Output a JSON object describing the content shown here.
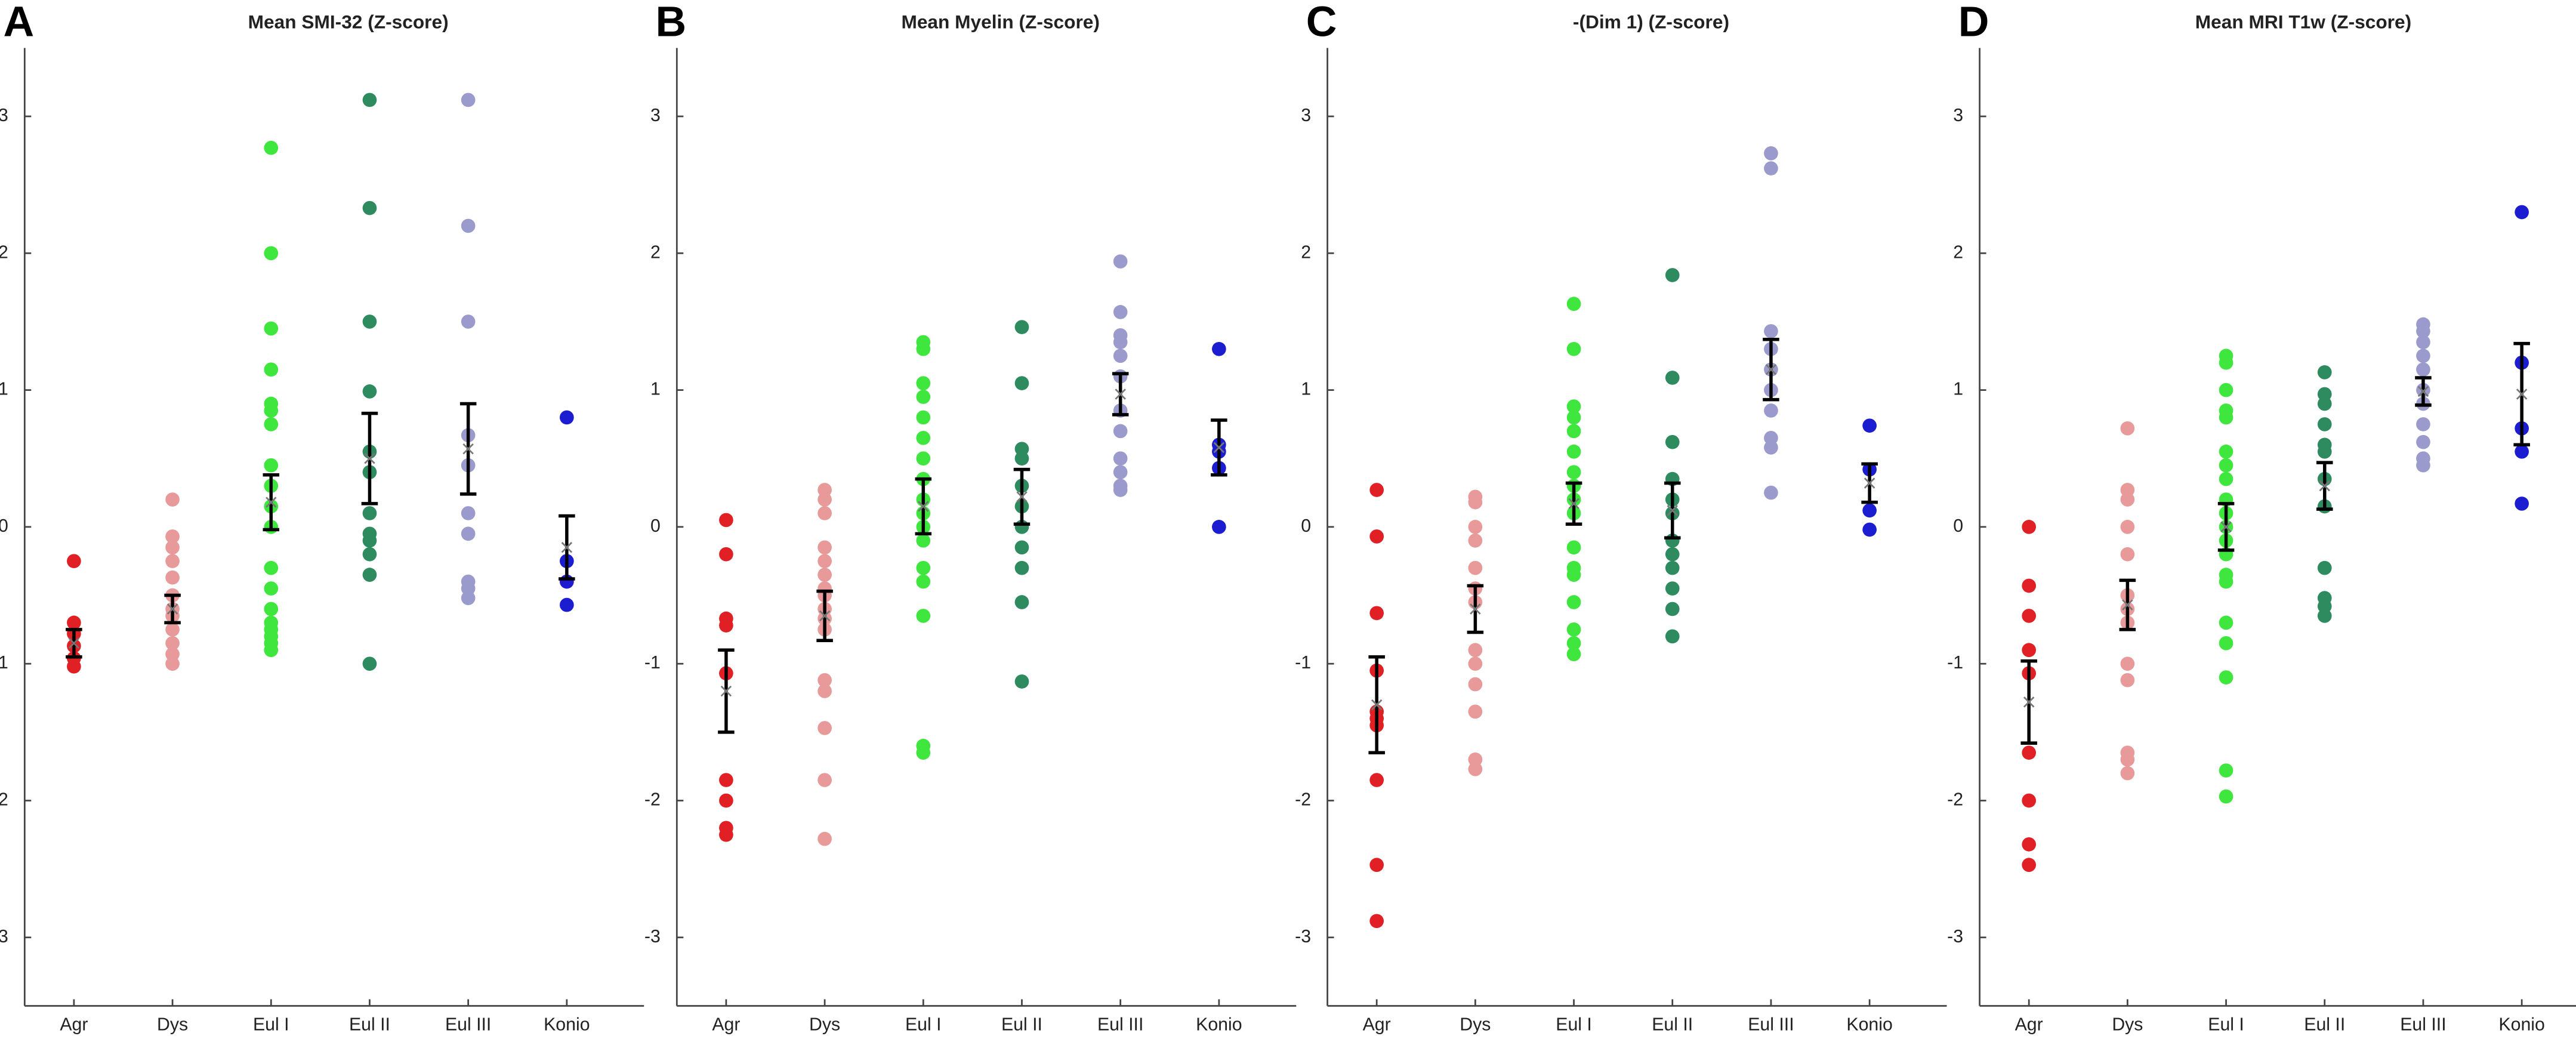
{
  "chart_data": [
    {
      "type": "strip",
      "panel_label": "A",
      "title": "Mean SMI-32 (Z-score)",
      "categories": [
        "Agr",
        "Dys",
        "Eul I",
        "Eul II",
        "Eul III",
        "Konio"
      ],
      "colors": [
        "#e02024",
        "#e89a9a",
        "#3ee63e",
        "#2e8b5f",
        "#9a9acc",
        "#1c1cd0"
      ],
      "points": [
        [
          -0.25,
          -0.7,
          -0.78,
          -0.87,
          -0.96,
          -1.02
        ],
        [
          0.2,
          -0.07,
          -0.15,
          -0.25,
          -0.37,
          -0.5,
          -0.6,
          -0.65,
          -0.75,
          -0.85,
          -0.93,
          -1.0
        ],
        [
          2.77,
          2.0,
          1.45,
          1.15,
          0.9,
          0.85,
          0.75,
          0.45,
          0.3,
          0.15,
          0.0,
          -0.3,
          -0.45,
          -0.6,
          -0.7,
          -0.75,
          -0.8,
          -0.85,
          -0.9
        ],
        [
          3.12,
          2.33,
          1.5,
          0.99,
          0.55,
          0.4,
          0.1,
          -0.05,
          -0.1,
          -0.2,
          -0.35,
          -1.0
        ],
        [
          3.12,
          2.2,
          1.5,
          0.67,
          0.45,
          0.1,
          -0.05,
          -0.4,
          -0.45,
          -0.52
        ],
        [
          0.8,
          -0.25,
          -0.4,
          -0.57
        ]
      ],
      "means": [
        -0.85,
        -0.6,
        0.18,
        0.5,
        0.57,
        -0.15
      ],
      "errors": [
        0.1,
        0.1,
        0.2,
        0.33,
        0.33,
        0.23
      ],
      "ylim": [
        -3.5,
        3.5
      ],
      "yticks": [
        -3,
        -2,
        -1,
        0,
        1,
        2,
        3
      ]
    },
    {
      "type": "strip",
      "panel_label": "B",
      "title": "Mean Myelin (Z-score)",
      "categories": [
        "Agr",
        "Dys",
        "Eul I",
        "Eul II",
        "Eul III",
        "Konio"
      ],
      "colors": [
        "#e02024",
        "#e89a9a",
        "#3ee63e",
        "#2e8b5f",
        "#9a9acc",
        "#1c1cd0"
      ],
      "points": [
        [
          0.05,
          -0.2,
          -0.67,
          -0.72,
          -1.07,
          -1.85,
          -2.0,
          -2.2,
          -2.25
        ],
        [
          0.27,
          0.2,
          0.1,
          -0.15,
          -0.25,
          -0.35,
          -0.45,
          -0.5,
          -0.6,
          -0.67,
          -0.75,
          -1.12,
          -1.2,
          -1.47,
          -1.85,
          -2.28
        ],
        [
          1.35,
          1.3,
          1.05,
          0.95,
          0.8,
          0.65,
          0.5,
          0.35,
          0.2,
          0.1,
          0.0,
          -0.1,
          -0.3,
          -0.4,
          -0.65,
          -1.6,
          -1.65
        ],
        [
          1.46,
          1.05,
          0.57,
          0.5,
          0.3,
          0.15,
          0.0,
          -0.15,
          -0.3,
          -0.55,
          -1.13
        ],
        [
          1.94,
          1.57,
          1.4,
          1.35,
          1.25,
          1.1,
          0.85,
          0.7,
          0.5,
          0.4,
          0.3,
          0.27
        ],
        [
          1.3,
          0.6,
          0.55,
          0.43,
          0.0
        ]
      ],
      "means": [
        -1.2,
        -0.65,
        0.15,
        0.22,
        0.97,
        0.58
      ],
      "errors": [
        0.3,
        0.18,
        0.2,
        0.2,
        0.15,
        0.2
      ],
      "ylim": [
        -3.5,
        3.5
      ],
      "yticks": [
        -3,
        -2,
        -1,
        0,
        1,
        2,
        3
      ]
    },
    {
      "type": "strip",
      "panel_label": "C",
      "title": "-(Dim 1) (Z-score)",
      "categories": [
        "Agr",
        "Dys",
        "Eul I",
        "Eul II",
        "Eul III",
        "Konio"
      ],
      "colors": [
        "#e02024",
        "#e89a9a",
        "#3ee63e",
        "#2e8b5f",
        "#9a9acc",
        "#1c1cd0"
      ],
      "points": [
        [
          0.27,
          -0.07,
          -0.63,
          -1.05,
          -1.35,
          -1.4,
          -1.45,
          -1.85,
          -2.47,
          -2.88
        ],
        [
          0.22,
          0.18,
          0.0,
          -0.1,
          -0.3,
          -0.45,
          -0.55,
          -0.9,
          -1.0,
          -1.15,
          -1.35,
          -1.7,
          -1.77
        ],
        [
          1.63,
          1.3,
          0.88,
          0.8,
          0.7,
          0.55,
          0.4,
          0.3,
          0.2,
          0.1,
          -0.15,
          -0.3,
          -0.35,
          -0.55,
          -0.75,
          -0.85,
          -0.93
        ],
        [
          1.84,
          1.09,
          0.62,
          0.35,
          0.2,
          0.1,
          -0.1,
          -0.2,
          -0.3,
          -0.45,
          -0.6,
          -0.8
        ],
        [
          2.73,
          2.62,
          1.43,
          1.3,
          1.15,
          1.0,
          0.85,
          0.65,
          0.58,
          0.25
        ],
        [
          0.74,
          0.42,
          0.12,
          -0.02
        ]
      ],
      "means": [
        -1.3,
        -0.6,
        0.17,
        0.12,
        1.15,
        0.32
      ],
      "errors": [
        0.35,
        0.17,
        0.15,
        0.2,
        0.22,
        0.14
      ],
      "ylim": [
        -3.5,
        3.5
      ],
      "yticks": [
        -3,
        -2,
        -1,
        0,
        1,
        2,
        3
      ]
    },
    {
      "type": "strip",
      "panel_label": "D",
      "title": "Mean MRI T1w (Z-score)",
      "categories": [
        "Agr",
        "Dys",
        "Eul I",
        "Eul II",
        "Eul III",
        "Konio"
      ],
      "colors": [
        "#e02024",
        "#e89a9a",
        "#3ee63e",
        "#2e8b5f",
        "#9a9acc",
        "#1c1cd0"
      ],
      "points": [
        [
          0.0,
          -0.43,
          -0.65,
          -0.9,
          -1.07,
          -1.65,
          -2.0,
          -2.32,
          -2.47
        ],
        [
          0.72,
          0.27,
          0.2,
          0.0,
          -0.2,
          -0.5,
          -0.6,
          -0.7,
          -1.0,
          -1.12,
          -1.65,
          -1.7,
          -1.8
        ],
        [
          1.25,
          1.2,
          1.0,
          0.85,
          0.8,
          0.55,
          0.45,
          0.35,
          0.2,
          0.1,
          0.0,
          -0.1,
          -0.2,
          -0.35,
          -0.4,
          -0.7,
          -0.85,
          -1.1,
          -1.78,
          -1.97
        ],
        [
          1.13,
          0.97,
          0.9,
          0.75,
          0.6,
          0.55,
          0.35,
          0.15,
          -0.3,
          -0.52,
          -0.58,
          -0.65
        ],
        [
          1.48,
          1.43,
          1.35,
          1.25,
          1.15,
          1.0,
          0.9,
          0.75,
          0.62,
          0.5,
          0.45
        ],
        [
          2.3,
          1.2,
          0.72,
          0.55,
          0.17
        ]
      ],
      "means": [
        -1.28,
        -0.57,
        0.0,
        0.3,
        0.99,
        0.97
      ],
      "errors": [
        0.3,
        0.18,
        0.17,
        0.17,
        0.1,
        0.37
      ],
      "ylim": [
        -3.5,
        3.5
      ],
      "yticks": [
        -3,
        -2,
        -1,
        0,
        1,
        2,
        3
      ]
    }
  ]
}
